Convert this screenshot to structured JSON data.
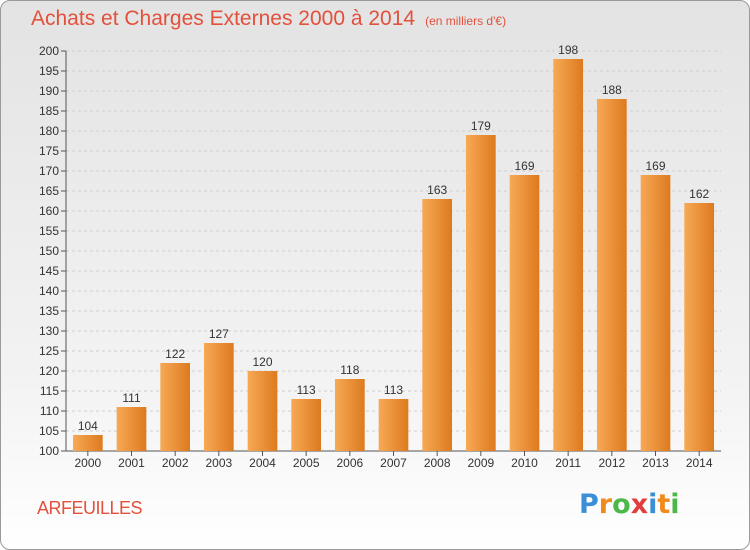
{
  "title": "Achats et Charges Externes 2000 à 2014",
  "subtitle": "(en milliers d'€)",
  "place": "ARFEUILLES",
  "logo": {
    "letters": [
      "P",
      "r",
      "o",
      "x",
      "i",
      "t",
      "i"
    ],
    "colors": [
      "#3b8fd6",
      "#f08a1a",
      "#4cb848",
      "#e23d3d",
      "#3b8fd6",
      "#f08a1a",
      "#4cb848"
    ]
  },
  "colors": {
    "bar_light": "#f7a955",
    "bar_dark": "#dd7a1f",
    "grid": "#cfcfcf",
    "title": "#e3503c"
  },
  "chart_data": {
    "type": "bar",
    "title": "Achats et Charges Externes 2000 à 2014",
    "subtitle": "(en milliers d'€)",
    "categories": [
      "2000",
      "2001",
      "2002",
      "2003",
      "2004",
      "2005",
      "2006",
      "2007",
      "2008",
      "2009",
      "2010",
      "2011",
      "2012",
      "2013",
      "2014"
    ],
    "values": [
      104,
      111,
      122,
      127,
      120,
      113,
      118,
      113,
      163,
      179,
      169,
      198,
      188,
      169,
      162
    ],
    "ylim": [
      100,
      200
    ],
    "ytick_step": 5,
    "grid": true,
    "data_labels": true
  }
}
